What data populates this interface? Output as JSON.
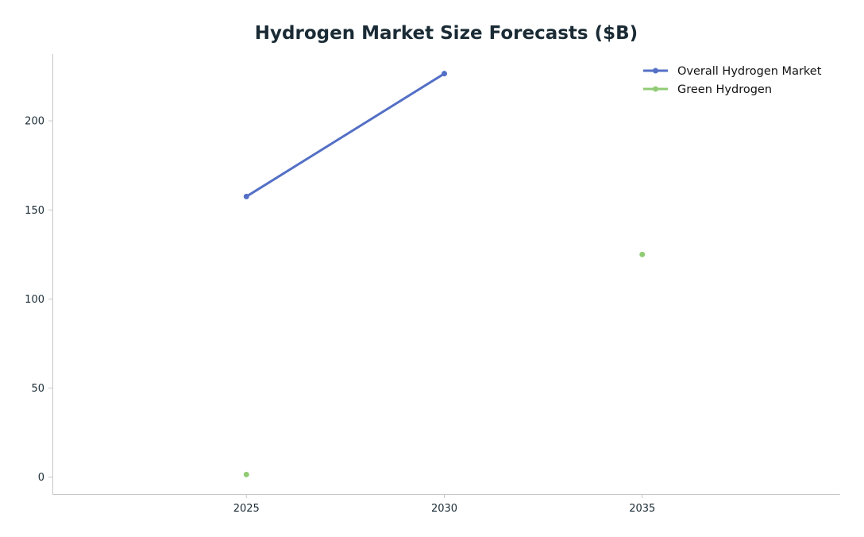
{
  "chart_data": {
    "type": "line",
    "title": "Hydrogen Market Size Forecasts ($B)",
    "xlabel": "",
    "ylabel": "",
    "x_ticks": [
      2025,
      2030,
      2035
    ],
    "y_ticks": [
      0,
      50,
      100,
      150,
      200
    ],
    "xlim": [
      2020.1,
      2040.0
    ],
    "ylim": [
      -9.5,
      237.5
    ],
    "grid": false,
    "legend_position": "top-right",
    "series": [
      {
        "name": "Overall Hydrogen Market",
        "color": "#5470c6",
        "points": [
          {
            "x": 2025,
            "y": 157.5
          },
          {
            "x": 2030,
            "y": 226.5
          }
        ]
      },
      {
        "name": "Green Hydrogen",
        "color": "#91cc75",
        "points": [
          {
            "x": 2025,
            "y": 1.5
          },
          {
            "x": 2035,
            "y": 125
          }
        ]
      }
    ]
  }
}
